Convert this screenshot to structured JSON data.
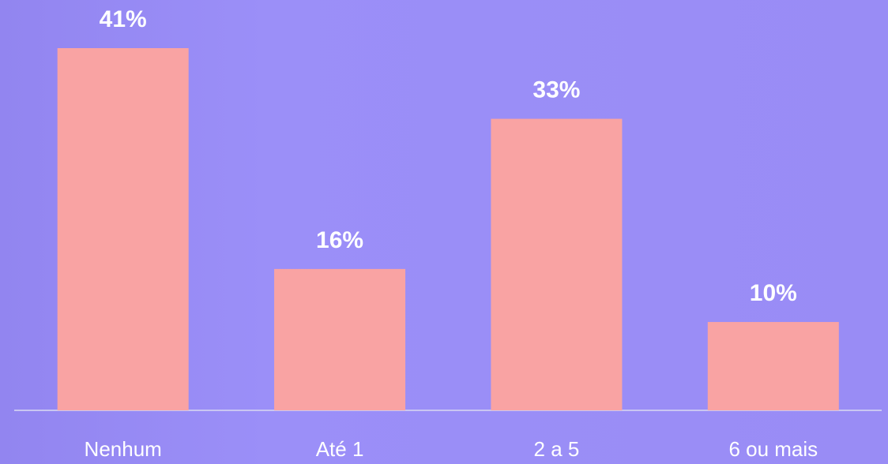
{
  "chart_data": {
    "type": "bar",
    "categories": [
      "Nenhum",
      "Até 1",
      "2 a 5",
      "6 ou mais"
    ],
    "values": [
      41,
      16,
      33,
      10
    ],
    "value_labels": [
      "41%",
      "16%",
      "33%",
      "10%"
    ],
    "color": "#f9a3a3"
  }
}
